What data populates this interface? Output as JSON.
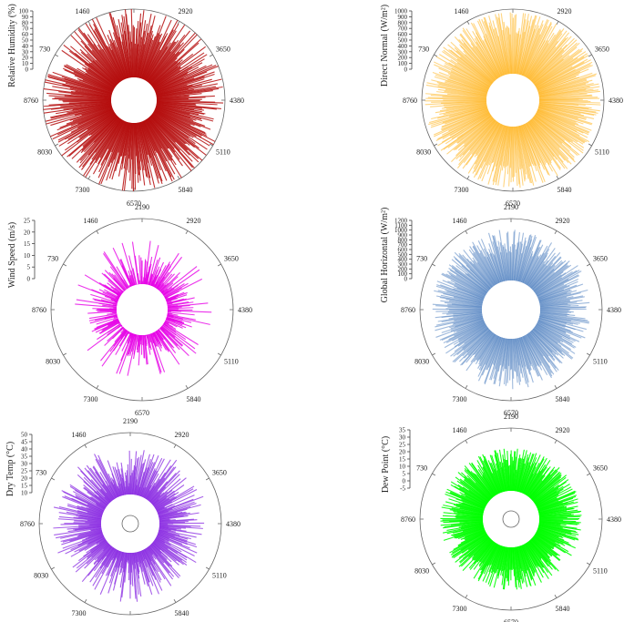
{
  "chart_data": [
    {
      "type": "radial-bar",
      "ylabel": "Relative Humidity (%)",
      "yticks": [
        0,
        10,
        20,
        30,
        40,
        50,
        60,
        70,
        80,
        90,
        100
      ],
      "ylim": [
        0,
        100
      ],
      "angular_ticks": [
        {
          "label": "2190"
        },
        {
          "label": "1460"
        },
        {
          "label": "730"
        },
        {
          "label": "8760"
        },
        {
          "label": "8030"
        },
        {
          "label": "7300"
        },
        {
          "label": "6570"
        },
        {
          "label": "5840"
        },
        {
          "label": "5110"
        },
        {
          "label": "4380"
        },
        {
          "label": "3650"
        },
        {
          "label": "2920"
        }
      ],
      "x_range": [
        0,
        8760
      ],
      "series": [
        {
          "color": "#b50d0d",
          "typical_value": 75,
          "min_value": 35,
          "max_value": 100,
          "alpha": 0.85
        }
      ]
    },
    {
      "type": "radial-bar",
      "ylabel": "Direct Normal (W/m²)",
      "yticks": [
        0,
        100,
        200,
        300,
        400,
        500,
        600,
        700,
        800,
        900,
        1000
      ],
      "ylim": [
        0,
        1000
      ],
      "angular_ticks": [
        {
          "label": "2190"
        },
        {
          "label": "1460"
        },
        {
          "label": "730"
        },
        {
          "label": "8760"
        },
        {
          "label": "8030"
        },
        {
          "label": "7300"
        },
        {
          "label": "6570"
        },
        {
          "label": "5840"
        },
        {
          "label": "5110"
        },
        {
          "label": "4380"
        },
        {
          "label": "3650"
        },
        {
          "label": "2920"
        }
      ],
      "x_range": [
        0,
        8760
      ],
      "series": [
        {
          "color": "#ffb319",
          "typical_value": 800,
          "min_value": 500,
          "max_value": 950,
          "alpha": 0.55
        }
      ]
    },
    {
      "type": "radial-bar",
      "ylabel": "Wind Speed (m/s)",
      "yticks": [
        0,
        5,
        10,
        15,
        20,
        25
      ],
      "ylim": [
        0,
        25
      ],
      "angular_ticks": [
        {
          "label": "2190"
        },
        {
          "label": "1460"
        },
        {
          "label": "730"
        },
        {
          "label": "8760"
        },
        {
          "label": "8030"
        },
        {
          "label": "7300"
        },
        {
          "label": "6570"
        },
        {
          "label": "5840"
        },
        {
          "label": "5110"
        },
        {
          "label": "4380"
        },
        {
          "label": "3650"
        },
        {
          "label": "2920"
        }
      ],
      "x_range": [
        0,
        8760
      ],
      "series": [
        {
          "color": "#e600e6",
          "typical_value": 4,
          "min_value": 0,
          "max_value": 17,
          "alpha": 0.8
        }
      ]
    },
    {
      "type": "radial-bar",
      "ylabel": "Global Horizontal (W/m²)",
      "yticks": [
        0,
        100,
        200,
        300,
        400,
        500,
        600,
        700,
        800,
        900,
        1000,
        1100,
        1200
      ],
      "ylim": [
        0,
        1200
      ],
      "angular_ticks": [
        {
          "label": "2190"
        },
        {
          "label": "1460"
        },
        {
          "label": "730"
        },
        {
          "label": "8760"
        },
        {
          "label": "8030"
        },
        {
          "label": "7300"
        },
        {
          "label": "6570"
        },
        {
          "label": "5840"
        },
        {
          "label": "5110"
        },
        {
          "label": "4380"
        },
        {
          "label": "3650"
        },
        {
          "label": "2920"
        }
      ],
      "x_range": [
        0,
        8760
      ],
      "series": [
        {
          "color": "#4f7fbf",
          "typical_value": 750,
          "min_value": 500,
          "max_value": 1000,
          "alpha": 0.55
        }
      ]
    },
    {
      "type": "radial-bar",
      "ylabel": "Dry Temp (°C)",
      "yticks": [
        10,
        15,
        20,
        25,
        30,
        35,
        40,
        45,
        50
      ],
      "ylim": [
        10,
        50
      ],
      "angular_ticks": [
        {
          "label": "2190"
        },
        {
          "label": "1460"
        },
        {
          "label": "730"
        },
        {
          "label": "8760"
        },
        {
          "label": "8030"
        },
        {
          "label": "7300"
        },
        {
          "label": "6570"
        },
        {
          "label": "5840"
        },
        {
          "label": "5110"
        },
        {
          "label": "4380"
        },
        {
          "label": "3650"
        },
        {
          "label": "2920"
        }
      ],
      "x_range": [
        0,
        8760
      ],
      "series": [
        {
          "color": "#8a2be2",
          "typical_value": 27,
          "min_value": 15,
          "max_value": 42,
          "alpha": 0.75
        }
      ]
    },
    {
      "type": "radial-bar",
      "ylabel": "Dew Point (°C)",
      "yticks": [
        -5,
        0,
        5,
        10,
        15,
        20,
        25,
        30,
        35
      ],
      "ylim": [
        -5,
        35
      ],
      "angular_ticks": [
        {
          "label": "2190"
        },
        {
          "label": "1460"
        },
        {
          "label": "730"
        },
        {
          "label": "8760"
        },
        {
          "label": "8030"
        },
        {
          "label": "7300"
        },
        {
          "label": "6570"
        },
        {
          "label": "5840"
        },
        {
          "label": "5110"
        },
        {
          "label": "4380"
        },
        {
          "label": "3650"
        },
        {
          "label": "2920"
        }
      ],
      "x_range": [
        0,
        8760
      ],
      "series": [
        {
          "color": "#00ff00",
          "typical_value": 16,
          "min_value": 5,
          "max_value": 22,
          "alpha": 0.9
        }
      ]
    }
  ]
}
